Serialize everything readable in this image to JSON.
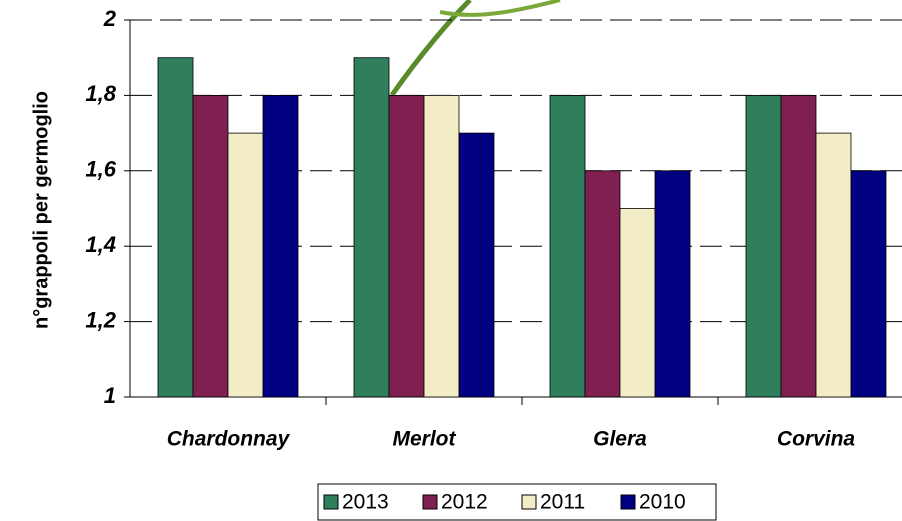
{
  "chart_data": {
    "type": "bar",
    "y_label": "n°grappoli per germoglio",
    "categories": [
      "Chardonnay",
      "Merlot",
      "Glera",
      "Corvina"
    ],
    "series": [
      {
        "name": "2013",
        "color": "#2f7f5c",
        "values": [
          1.9,
          1.9,
          1.8,
          1.8
        ]
      },
      {
        "name": "2012",
        "color": "#7f2050",
        "values": [
          1.8,
          1.8,
          1.6,
          1.8
        ]
      },
      {
        "name": "2011",
        "color": "#f2edc4",
        "values": [
          1.7,
          1.8,
          1.5,
          1.7
        ]
      },
      {
        "name": "2010",
        "color": "#000080",
        "values": [
          1.8,
          1.7,
          1.6,
          1.6
        ]
      }
    ],
    "ylim": [
      1,
      2
    ],
    "yticks": [
      1,
      {
        "value": 1.2,
        "label": "1,2"
      },
      {
        "value": 1.4,
        "label": "1,4"
      },
      {
        "value": 1.6,
        "label": "1,6"
      },
      {
        "value": 1.8,
        "label": "1,8"
      },
      2
    ],
    "grid": true
  }
}
